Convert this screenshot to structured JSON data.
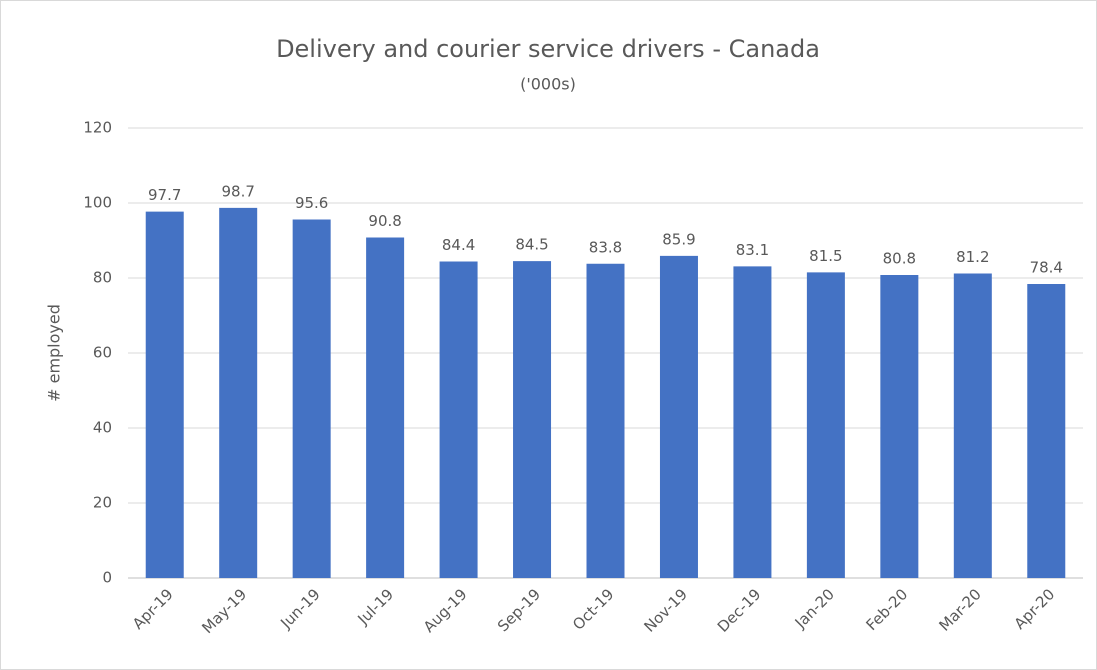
{
  "chart_data": {
    "type": "bar",
    "title": "Delivery and courier service drivers - Canada",
    "subtitle": "('000s)",
    "y_label": "# employed",
    "categories": [
      "Apr-19",
      "May-19",
      "Jun-19",
      "Jul-19",
      "Aug-19",
      "Sep-19",
      "Oct-19",
      "Nov-19",
      "Dec-19",
      "Jan-20",
      "Feb-20",
      "Mar-20",
      "Apr-20"
    ],
    "values": [
      97.7,
      98.7,
      95.6,
      90.8,
      84.4,
      84.5,
      83.8,
      85.9,
      83.1,
      81.5,
      80.8,
      81.2,
      78.4
    ],
    "color": "#4472c4",
    "ylim": [
      0,
      120
    ],
    "yticks": [
      0,
      20,
      40,
      60,
      80,
      100,
      120
    ],
    "grid": true,
    "data_labels": true
  }
}
